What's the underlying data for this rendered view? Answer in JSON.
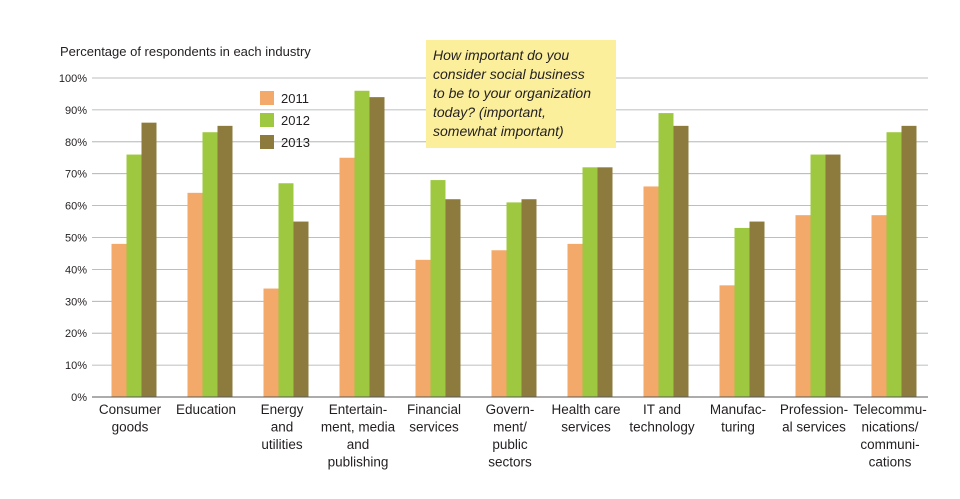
{
  "chart_data": {
    "type": "bar",
    "ylabel": "Percentage of respondents in each industry",
    "ylim": [
      0,
      100
    ],
    "yticks": [
      "0%",
      "10%",
      "20%",
      "30%",
      "40%",
      "50%",
      "60%",
      "70%",
      "80%",
      "90%",
      "100%"
    ],
    "grid": "horizontal",
    "legend_position": "top-left",
    "annotation": [
      "How important do you",
      "consider social business",
      "to be to your organization",
      "today?  (important,",
      "somewhat important)"
    ],
    "categories": [
      [
        "Consumer",
        "goods"
      ],
      [
        "Education"
      ],
      [
        "Energy",
        "and",
        "utilities"
      ],
      [
        "Entertain-",
        "ment, media",
        "and",
        "publishing"
      ],
      [
        "Financial",
        "services"
      ],
      [
        "Govern-",
        "ment/",
        "public",
        "sectors"
      ],
      [
        "Health care",
        "services"
      ],
      [
        "IT and",
        "technology"
      ],
      [
        "Manufac-",
        "turing"
      ],
      [
        "Profession-",
        "al services"
      ],
      [
        "Telecommu-",
        "nications/",
        "communi-",
        "cations"
      ]
    ],
    "series": [
      {
        "name": "2011",
        "color": "#f2a969",
        "values": [
          48,
          64,
          34,
          75,
          43,
          46,
          48,
          66,
          35,
          57,
          57
        ]
      },
      {
        "name": "2012",
        "color": "#9dc83f",
        "values": [
          76,
          83,
          67,
          96,
          68,
          61,
          72,
          89,
          53,
          76,
          83
        ]
      },
      {
        "name": "2013",
        "color": "#8d7a3d",
        "values": [
          86,
          85,
          55,
          94,
          62,
          62,
          72,
          85,
          55,
          76,
          85
        ]
      }
    ]
  }
}
